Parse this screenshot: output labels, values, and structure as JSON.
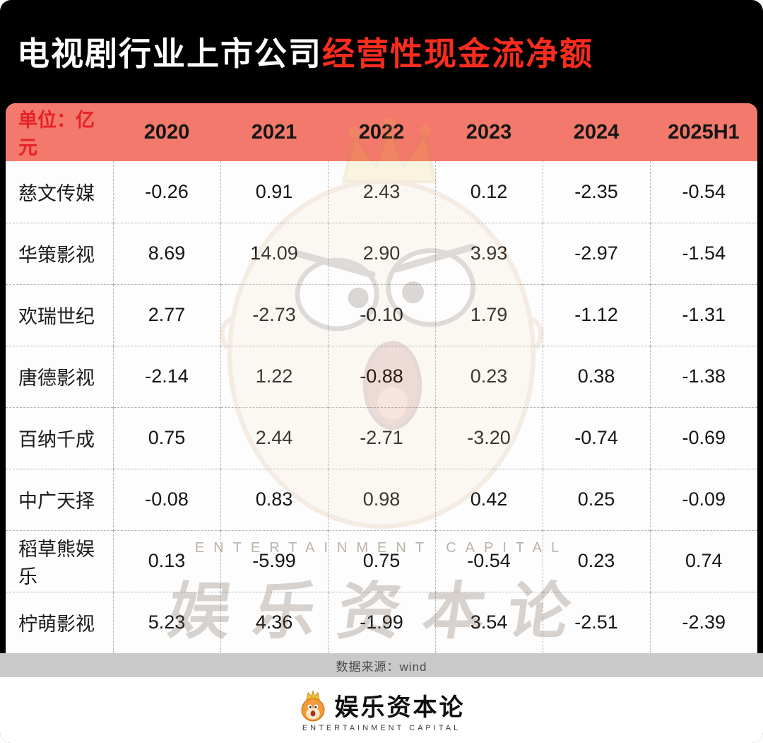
{
  "title": {
    "part1": "电视剧行业上市公司",
    "part2": "经营性现金流净额"
  },
  "chart_data": {
    "type": "table",
    "title": "电视剧行业上市公司经营性现金流净额",
    "unit_label": "单位：亿元",
    "columns": [
      "2020",
      "2021",
      "2022",
      "2023",
      "2024",
      "2025H1"
    ],
    "rows": [
      {
        "name": "慈文传媒",
        "values": [
          "-0.26",
          "0.91",
          "2.43",
          "0.12",
          "-2.35",
          "-0.54"
        ]
      },
      {
        "name": "华策影视",
        "values": [
          "8.69",
          "14.09",
          "2.90",
          "3.93",
          "-2.97",
          "-1.54"
        ]
      },
      {
        "name": "欢瑞世纪",
        "values": [
          "2.77",
          "-2.73",
          "-0.10",
          "1.79",
          "-1.12",
          "-1.31"
        ]
      },
      {
        "name": "唐德影视",
        "values": [
          "-2.14",
          "1.22",
          "-0.88",
          "0.23",
          "0.38",
          "-1.38"
        ]
      },
      {
        "name": "百纳千成",
        "values": [
          "0.75",
          "2.44",
          "-2.71",
          "-3.20",
          "-0.74",
          "-0.69"
        ]
      },
      {
        "name": "中广天择",
        "values": [
          "-0.08",
          "0.83",
          "0.98",
          "0.42",
          "0.25",
          "-0.09"
        ]
      },
      {
        "name": "稻草熊娱乐",
        "values": [
          "0.13",
          "-5.99",
          "0.75",
          "-0.54",
          "0.23",
          "0.74"
        ]
      },
      {
        "name": "柠萌影视",
        "values": [
          "5.23",
          "4.36",
          "-1.99",
          "3.54",
          "-2.51",
          "-2.39"
        ]
      }
    ]
  },
  "source": {
    "label": "数据来源：wind"
  },
  "brand": {
    "name": "娱乐资本论",
    "subtitle": "ENTERTAINMENT CAPITAL"
  },
  "watermark": {
    "text_en": "ENTERTAINMENT CAPITAL",
    "text_cn": "娱乐资本论"
  },
  "colors": {
    "page_bg": "#000000",
    "accent_red": "#fa2c1e",
    "header_bg": "#f2796b",
    "unit_text": "#e62129",
    "source_bar_bg": "#c9c9c9"
  }
}
